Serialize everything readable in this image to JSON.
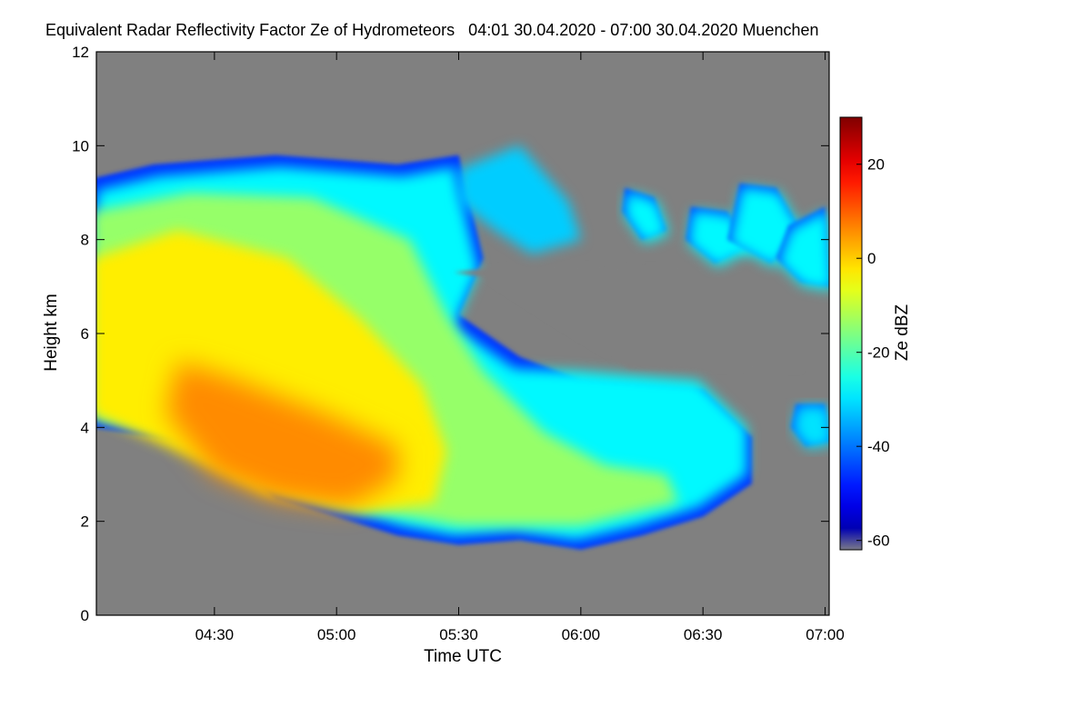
{
  "chart_data": {
    "type": "heatmap",
    "title": "Equivalent Radar Reflectivity Factor Ze of Hydrometeors   04:01 30.04.2020 - 07:00 30.04.2020 Muenchen",
    "xlabel": "Time UTC",
    "ylabel": "Height km",
    "x_unit": "UTC time",
    "x_range": [
      "04:01",
      "07:01"
    ],
    "x_ticks": [
      "04:30",
      "05:00",
      "05:30",
      "06:00",
      "06:30",
      "07:00"
    ],
    "ylim": [
      0,
      12
    ],
    "y_ticks": [
      0,
      2,
      4,
      6,
      8,
      10,
      12
    ],
    "colorbar": {
      "label": "Ze dBZ",
      "range": [
        -62,
        30
      ],
      "ticks": [
        -60,
        -40,
        -20,
        0,
        20
      ],
      "colormap": "jet"
    },
    "background_color": "#808080",
    "grid": false,
    "features": [
      {
        "name": "main precipitation / cloud body",
        "time_start": "04:01",
        "time_end": "06:50",
        "base_km": [
          [
            4.0,
            4.0
          ],
          [
            4.5,
            3.6
          ],
          [
            4.75,
            2.5
          ],
          [
            5.0,
            2.1
          ],
          [
            5.25,
            1.7
          ],
          [
            5.5,
            1.5
          ],
          [
            5.75,
            1.6
          ],
          [
            6.0,
            1.4
          ],
          [
            6.25,
            1.7
          ],
          [
            6.5,
            2.1
          ],
          [
            6.7,
            2.8
          ]
        ],
        "top_km": [
          [
            4.0,
            9.3
          ],
          [
            4.25,
            9.6
          ],
          [
            4.5,
            9.7
          ],
          [
            4.75,
            9.8
          ],
          [
            5.0,
            9.7
          ],
          [
            5.25,
            9.6
          ],
          [
            5.5,
            9.8
          ],
          [
            5.6,
            7.6
          ],
          [
            5.5,
            6.4
          ],
          [
            5.75,
            5.5
          ],
          [
            6.0,
            5.0
          ],
          [
            6.25,
            4.9
          ],
          [
            6.5,
            4.8
          ],
          [
            6.7,
            3.8
          ]
        ],
        "ze_range_dbz": [
          -50,
          8
        ]
      },
      {
        "name": "reflectivity maximum",
        "time": "04:30-05:15",
        "height_km": [
          2.3,
          4.8
        ],
        "ze_dbz_max": 8
      },
      {
        "name": "upper cloud fragments",
        "time_start": "06:10",
        "time_end": "07:00",
        "height_km": [
          6.9,
          9.3
        ],
        "ze_range_dbz": [
          -45,
          -25
        ]
      },
      {
        "name": "mid-level fragment",
        "time_start": "06:50",
        "time_end": "07:00",
        "height_km": [
          3.6,
          4.5
        ],
        "ze_range_dbz": [
          -45,
          -25
        ]
      }
    ]
  }
}
